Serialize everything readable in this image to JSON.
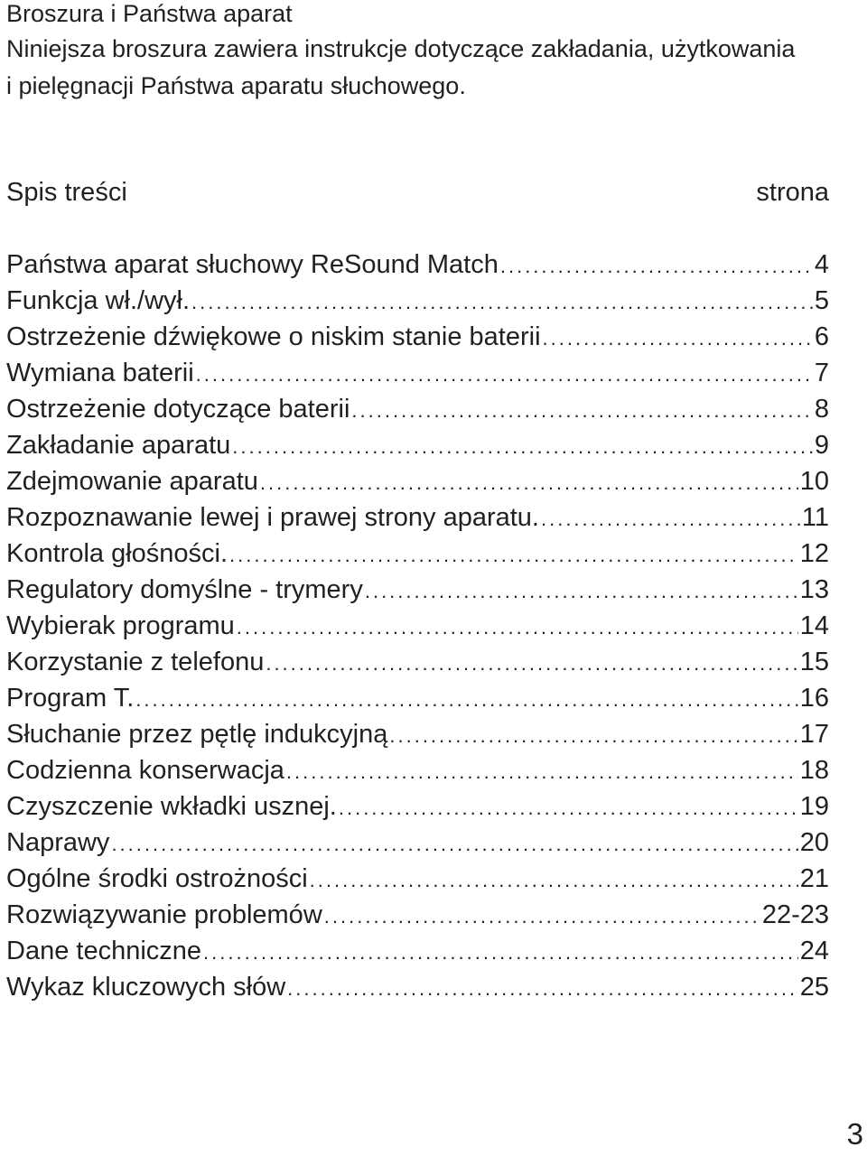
{
  "header": {
    "title": "Broszura i Państwa aparat",
    "intro_line1": "Niniejsza broszura zawiera instrukcje dotyczące zakładania, użytkowania",
    "intro_line2": "i pielęgnacji Państwa aparatu słuchowego."
  },
  "toc": {
    "title": "Spis treści",
    "page_column_label": "strona",
    "entries": [
      {
        "title": "Państwa aparat słuchowy ReSound Match",
        "page": "4"
      },
      {
        "title": "Funkcja wł./wył.",
        "page": "5"
      },
      {
        "title": "Ostrzeżenie dźwiękowe o niskim stanie baterii",
        "page": "6"
      },
      {
        "title": "Wymiana baterii",
        "page": "7"
      },
      {
        "title": "Ostrzeżenie dotyczące baterii",
        "page": "8"
      },
      {
        "title": "Zakładanie aparatu",
        "page": "9"
      },
      {
        "title": "Zdejmowanie aparatu",
        "page": "10"
      },
      {
        "title": "Rozpoznawanie lewej i prawej strony aparatu.",
        "page": "11"
      },
      {
        "title": "Kontrola głośności.",
        "page": "12"
      },
      {
        "title": "Regulatory domyślne - trymery",
        "page": "13"
      },
      {
        "title": "Wybierak programu",
        "page": "14"
      },
      {
        "title": "Korzystanie z telefonu",
        "page": "15"
      },
      {
        "title": "Program T.",
        "page": "16"
      },
      {
        "title": "Słuchanie przez pętlę indukcyjną",
        "page": "17"
      },
      {
        "title": "Codzienna konserwacja",
        "page": "18"
      },
      {
        "title": "Czyszczenie wkładki usznej.",
        "page": "19"
      },
      {
        "title": "Naprawy",
        "page": "20"
      },
      {
        "title": "Ogólne środki ostrożności",
        "page": "21"
      },
      {
        "title": "Rozwiązywanie problemów",
        "page": "22-23"
      },
      {
        "title": "Dane techniczne",
        "page": "24"
      },
      {
        "title": "Wykaz kluczowych słów",
        "page": "25"
      }
    ]
  },
  "footer": {
    "page_number": "3"
  }
}
